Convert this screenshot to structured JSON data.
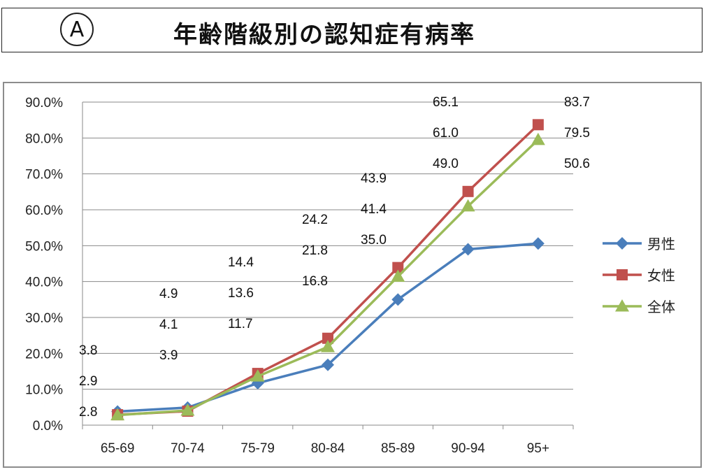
{
  "header": {
    "badge": "A",
    "title": "年齢階級別の認知症有病率"
  },
  "chart_data": {
    "type": "line",
    "categories": [
      "65-69",
      "70-74",
      "75-79",
      "80-84",
      "85-89",
      "90-94",
      "95+"
    ],
    "y_ticks": [
      "0.0%",
      "10.0%",
      "20.0%",
      "30.0%",
      "40.0%",
      "50.0%",
      "60.0%",
      "70.0%",
      "80.0%",
      "90.0%"
    ],
    "ylim": [
      0,
      90
    ],
    "grid": true,
    "legend_position": "right",
    "series": [
      {
        "name": "男性",
        "color": "#4a7ebb",
        "marker": "diamond",
        "values": [
          3.8,
          4.9,
          11.7,
          16.8,
          35.0,
          49.0,
          50.6
        ]
      },
      {
        "name": "女性",
        "color": "#c0504d",
        "marker": "square",
        "values": [
          2.9,
          3.9,
          14.4,
          24.2,
          43.9,
          65.1,
          83.7
        ]
      },
      {
        "name": "全体",
        "color": "#9bbb59",
        "marker": "triangle",
        "values": [
          2.8,
          4.1,
          13.6,
          21.8,
          41.4,
          61.0,
          79.5
        ]
      }
    ],
    "data_labels": [
      [
        "3.8",
        "2.9",
        "2.8"
      ],
      [
        "4.9",
        "4.1",
        "3.9"
      ],
      [
        "14.4",
        "13.6",
        "11.7"
      ],
      [
        "24.2",
        "21.8",
        "16.8"
      ],
      [
        "43.9",
        "41.4",
        "35.0"
      ],
      [
        "65.1",
        "61.0",
        "49.0"
      ],
      [
        "83.7",
        "79.5",
        "50.6"
      ]
    ]
  }
}
